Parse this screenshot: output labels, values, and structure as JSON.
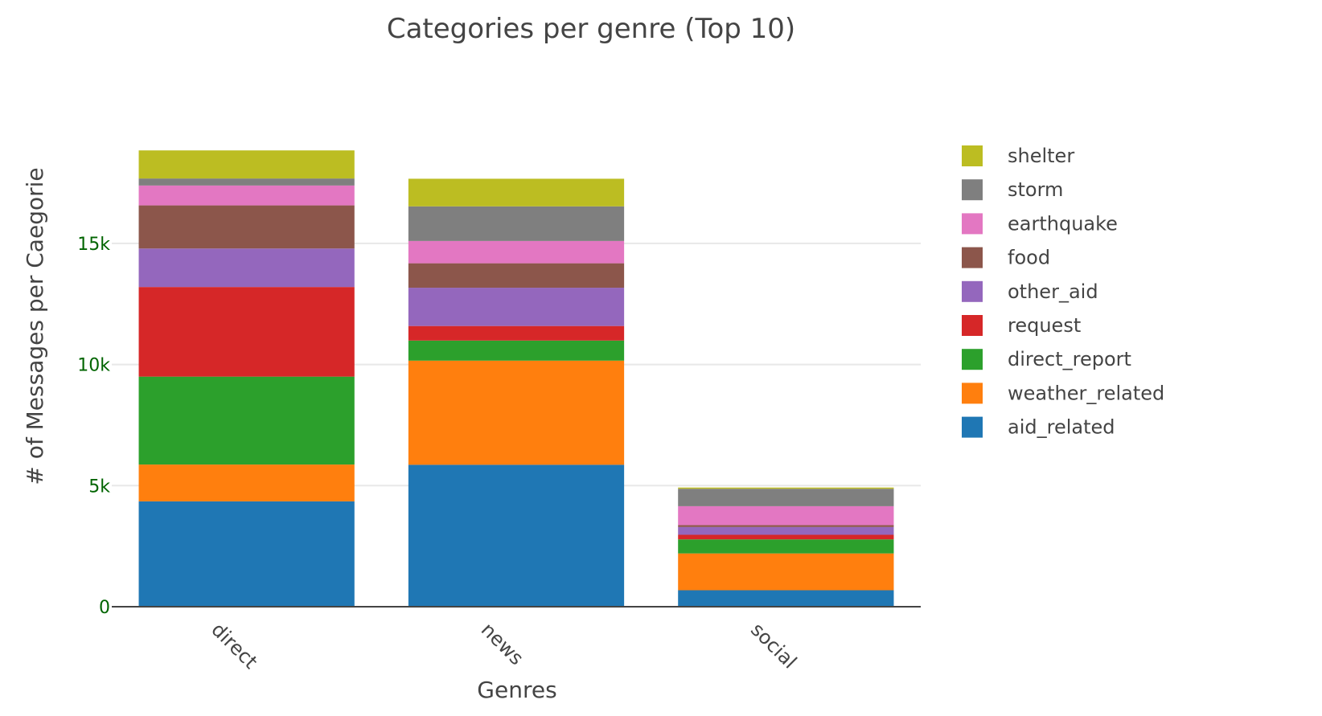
{
  "chart_data": {
    "type": "bar",
    "stacked": true,
    "title": "Categories per genre (Top 10)",
    "xlabel": "Genres",
    "ylabel": "# of Messages per Caegorie",
    "categories": [
      "direct",
      "news",
      "social"
    ],
    "yticks": [
      {
        "value": 0,
        "label": "0"
      },
      {
        "value": 5000,
        "label": "5k"
      },
      {
        "value": 10000,
        "label": "10k"
      },
      {
        "value": 15000,
        "label": "15k"
      }
    ],
    "ylim": [
      0,
      19000
    ],
    "grid": true,
    "legend_position": "right",
    "series": [
      {
        "name": "aid_related",
        "color": "#1f77b4",
        "values": [
          4350,
          5860,
          680
        ]
      },
      {
        "name": "weather_related",
        "color": "#ff7f0e",
        "values": [
          1520,
          4300,
          1520
        ]
      },
      {
        "name": "direct_report",
        "color": "#2ca02c",
        "values": [
          3630,
          830,
          580
        ]
      },
      {
        "name": "request",
        "color": "#d62728",
        "values": [
          3700,
          600,
          190
        ]
      },
      {
        "name": "other_aid",
        "color": "#9467bd",
        "values": [
          1590,
          1580,
          320
        ]
      },
      {
        "name": "food",
        "color": "#8c564b",
        "values": [
          1780,
          1010,
          80
        ]
      },
      {
        "name": "earthquake",
        "color": "#e377c2",
        "values": [
          820,
          920,
          780
        ]
      },
      {
        "name": "storm",
        "color": "#7f7f7f",
        "values": [
          290,
          1430,
          720
        ]
      },
      {
        "name": "shelter",
        "color": "#bcbd22",
        "values": [
          1160,
          1140,
          50
        ]
      }
    ]
  }
}
